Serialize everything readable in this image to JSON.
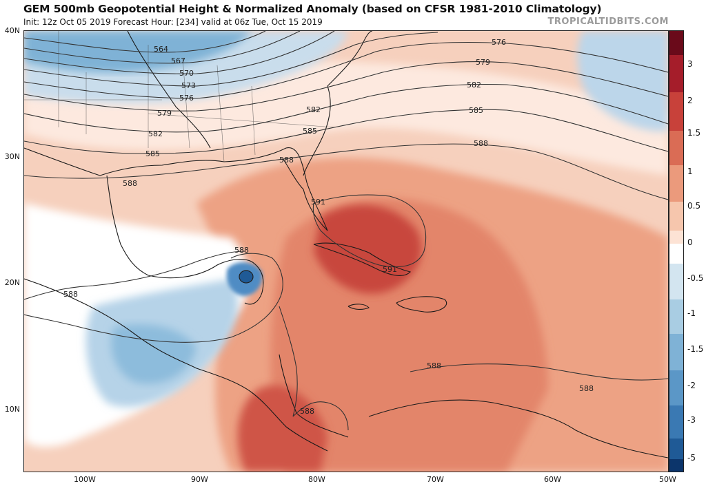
{
  "header": {
    "title": "GEM 500mb Geopotential Height & Normalized Anomaly (based on CFSR 1981-2010 Climatology)",
    "subtitle": "Init: 12z Oct 05 2019   Forecast Hour: [234]   valid at 06z Tue, Oct 15 2019",
    "brand": "TROPICALTIDBITS.COM"
  },
  "axes": {
    "lat_labels": [
      "40N",
      "30N",
      "20N",
      "10N"
    ],
    "lon_labels": [
      "100W",
      "90W",
      "80W",
      "70W",
      "60W",
      "50W"
    ]
  },
  "colorbar": {
    "labels": [
      "3",
      "2",
      "1.5",
      "1",
      "0.5",
      "0",
      "-0.5",
      "-1",
      "-1.5",
      "-2",
      "-3",
      "-5"
    ],
    "colors": [
      "#6a0a1a",
      "#a51d2a",
      "#c8413a",
      "#da6c55",
      "#eb9a7c",
      "#f6c6ad",
      "#fde3d5",
      "#ffffff",
      "#d3e5f0",
      "#a9cde3",
      "#7fb2d6",
      "#5b97c7",
      "#3a79b3",
      "#1f5a96",
      "#0c356b"
    ]
  },
  "contours": {
    "labels": [
      "564",
      "567",
      "570",
      "573",
      "576",
      "579",
      "582",
      "585",
      "588",
      "591"
    ],
    "colors": {
      "line": "#333333"
    }
  },
  "map": {
    "colors": {
      "ocean_white": "#ffffff",
      "warm_1": "#f8d6c4",
      "warm_2": "#eeae92",
      "warm_3": "#e38a6e",
      "warm_4": "#d06150",
      "cool_1": "#dbe8f2",
      "cool_2": "#a9cce3",
      "cool_3": "#6fa6d2"
    }
  }
}
